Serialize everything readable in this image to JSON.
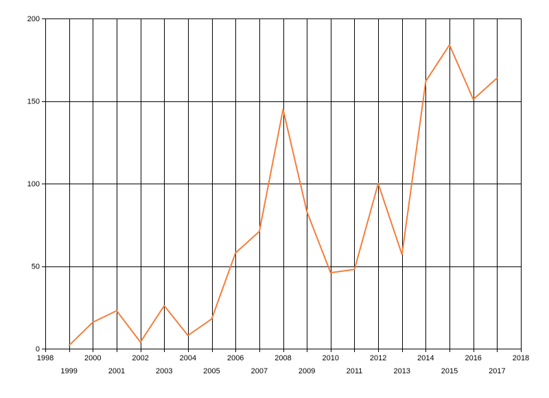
{
  "chart_data": {
    "type": "line",
    "title": "",
    "xlabel": "",
    "ylabel": "",
    "xlim": [
      1998,
      2018
    ],
    "ylim": [
      0,
      200
    ],
    "x_ticks": [
      1998,
      1999,
      2000,
      2001,
      2002,
      2003,
      2004,
      2005,
      2006,
      2007,
      2008,
      2009,
      2010,
      2011,
      2012,
      2013,
      2014,
      2015,
      2016,
      2017,
      2018
    ],
    "y_ticks": [
      0,
      50,
      100,
      150,
      200
    ],
    "grid": true,
    "legend": "none",
    "colors": {
      "line": "#F47D3A",
      "grid": "#000000",
      "axis": "#000000",
      "background": "#FFFFFF"
    },
    "series": [
      {
        "x": [
          1999,
          2000,
          2001,
          2002,
          2003,
          2004,
          2005,
          2006,
          2007,
          2008,
          2009,
          2010,
          2011,
          2012,
          2013,
          2014,
          2015,
          2016,
          2017
        ],
        "values": [
          2,
          16,
          23,
          4,
          26,
          8,
          18,
          58,
          71,
          145,
          83,
          46,
          48,
          100,
          57,
          162,
          184,
          151,
          164
        ]
      }
    ]
  }
}
